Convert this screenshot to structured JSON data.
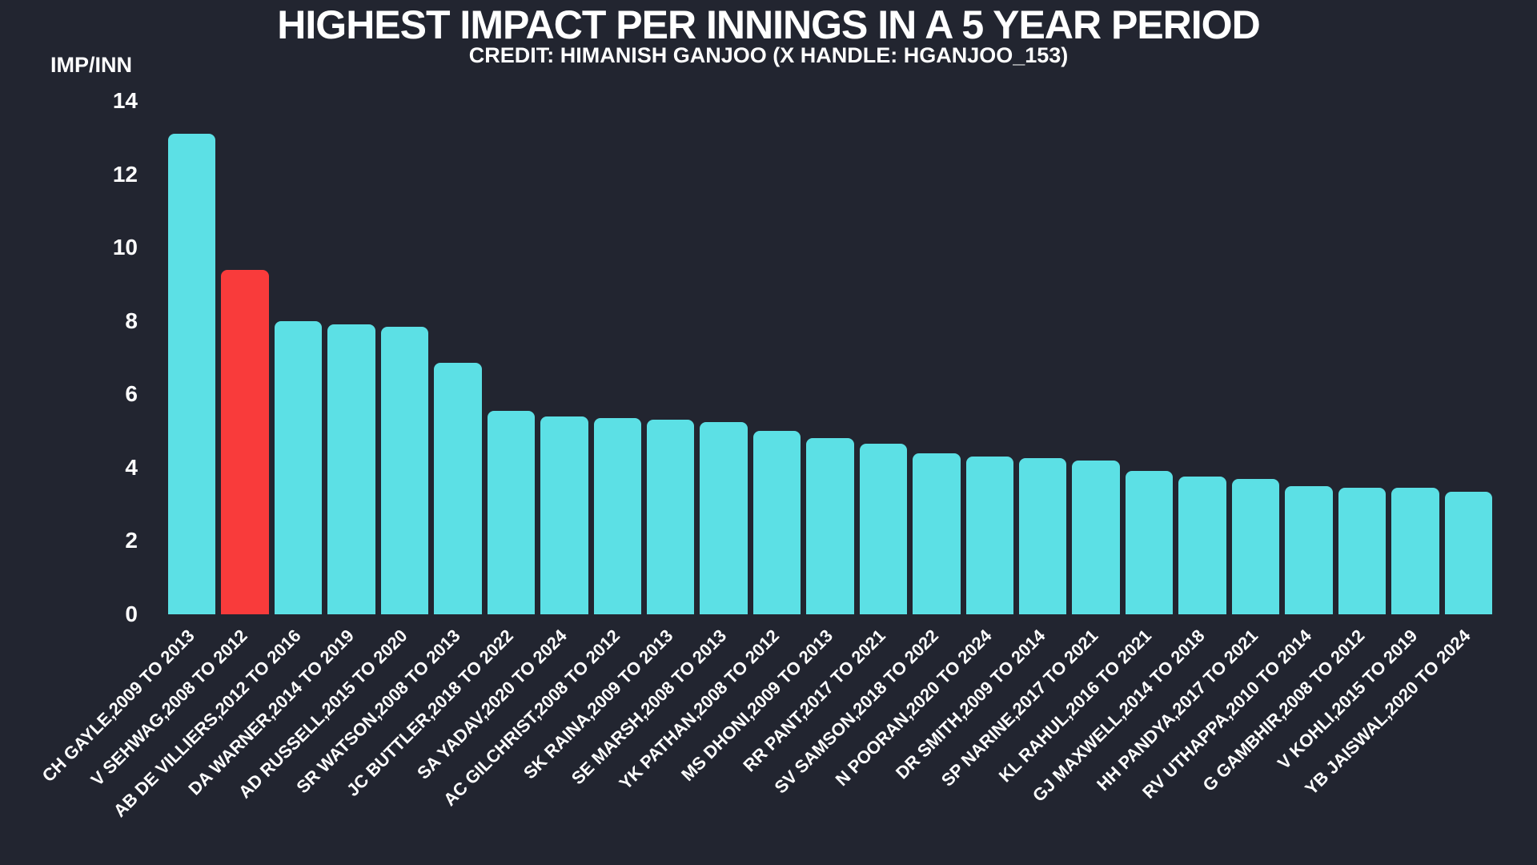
{
  "title": "HIGHEST IMPACT PER INNINGS IN A 5 YEAR PERIOD",
  "subtitle": "CREDIT: HIMANISH GANJOO (X HANDLE: HGANJOO_153)",
  "chart_data": {
    "type": "bar",
    "title": "HIGHEST IMPACT PER INNINGS IN A 5 YEAR PERIOD",
    "subtitle": "CREDIT: HIMANISH GANJOO (X HANDLE: HGANJOO_153)",
    "ylabel": "IMP/INN",
    "xlabel": "",
    "ylim": [
      0,
      14
    ],
    "yticks": [
      0,
      2,
      4,
      6,
      8,
      10,
      12,
      14
    ],
    "grid": false,
    "legend_position": "none",
    "colors": {
      "background": "#222530",
      "bar": "#5CE0E5",
      "highlight": "#F93B3B",
      "text": "#FFFFFF"
    },
    "highlight_index": 1,
    "categories": [
      "CH GAYLE,2009 TO 2013",
      "V SEHWAG,2008 TO 2012",
      "AB DE VILLIERS,2012 TO 2016",
      "DA WARNER,2014 TO 2019",
      "AD RUSSELL,2015 TO 2020",
      "SR WATSON,2008 TO 2013",
      "JC BUTTLER,2018 TO 2022",
      "SA YADAV,2020 TO 2024",
      "AC GILCHRIST,2008 TO 2012",
      "SK RAINA,2009 TO 2013",
      "SE MARSH,2008 TO 2013",
      "YK PATHAN,2008 TO 2012",
      "MS DHONI,2009 TO 2013",
      "RR PANT,2017 TO 2021",
      "SV SAMSON,2018 TO 2022",
      "N POORAN,2020 TO 2024",
      "DR SMITH,2009 TO 2014",
      "SP NARINE,2017 TO 2021",
      "KL RAHUL,2016 TO 2021",
      "GJ MAXWELL,2014 TO 2018",
      "HH PANDYA,2017 TO 2021",
      "RV UTHAPPA,2010 TO 2014",
      "G GAMBHIR,2008 TO 2012",
      "V KOHLI,2015 TO 2019",
      "YB JAISWAL,2020 TO 2024"
    ],
    "values": [
      13.1,
      9.4,
      8.0,
      7.9,
      7.85,
      6.85,
      5.55,
      5.4,
      5.35,
      5.3,
      5.25,
      5.0,
      4.8,
      4.65,
      4.4,
      4.3,
      4.25,
      4.2,
      3.9,
      3.75,
      3.7,
      3.5,
      3.45,
      3.45,
      3.35
    ]
  }
}
